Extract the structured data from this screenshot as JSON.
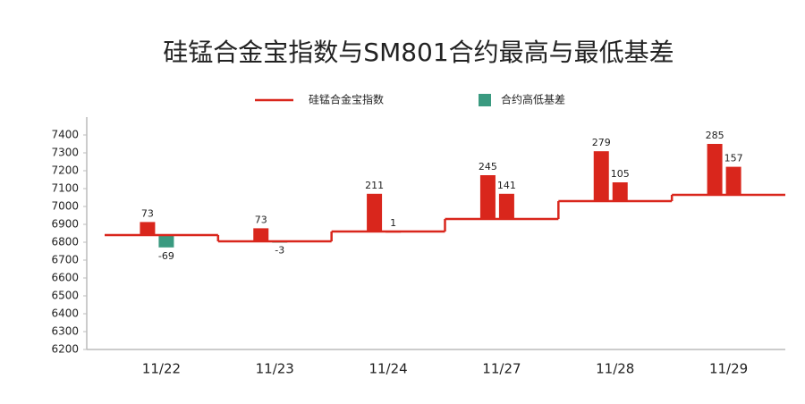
{
  "chart_data": {
    "type": "step-basis",
    "title": "硅锰合金宝指数与SM801合约最高与最低基差",
    "categories": [
      "11/22",
      "11/23",
      "11/24",
      "11/27",
      "11/28",
      "11/29"
    ],
    "series": [
      {
        "name": "硅锰合金宝指数",
        "color": "#d9261c",
        "values": [
          6840,
          6805,
          6860,
          6930,
          7030,
          7065
        ]
      },
      {
        "name": "合约高低基差",
        "color": "#3a9a80",
        "positive_color": "#d9261c",
        "values": [
          [
            73,
            -69
          ],
          [
            73,
            -3
          ],
          [
            211,
            1
          ],
          [
            245,
            141
          ],
          [
            279,
            105
          ],
          [
            285,
            157
          ]
        ]
      }
    ],
    "ylim": [
      6200,
      7500
    ],
    "yticks": [
      6200,
      6300,
      6400,
      6500,
      6600,
      6700,
      6800,
      6900,
      7000,
      7100,
      7200,
      7300,
      7400
    ]
  }
}
